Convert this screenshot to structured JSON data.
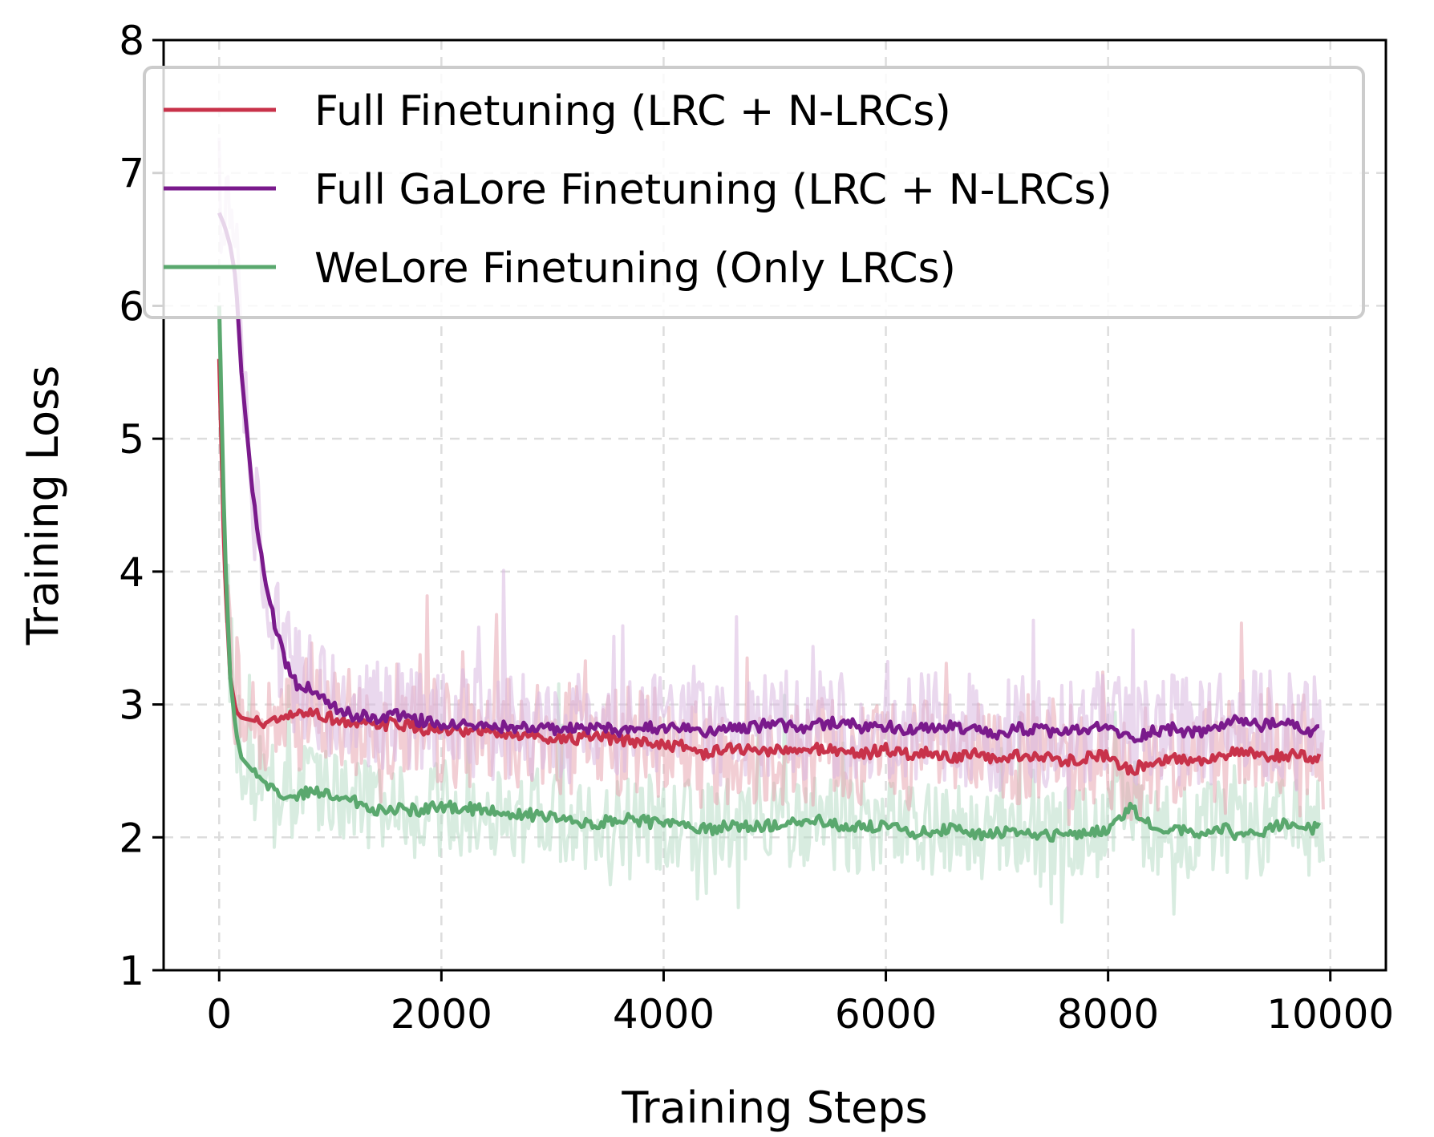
{
  "chart_data": {
    "type": "line",
    "title": "",
    "xlabel": "Training Steps",
    "ylabel": "Training Loss",
    "xlim": [
      -500,
      10500
    ],
    "ylim": [
      1,
      8
    ],
    "xticks": [
      0,
      2000,
      4000,
      6000,
      8000,
      10000
    ],
    "xtick_labels": [
      "0",
      "2000",
      "4000",
      "6000",
      "8000",
      "10000"
    ],
    "yticks": [
      1,
      2,
      3,
      4,
      5,
      6,
      7,
      8
    ],
    "ytick_labels": [
      "1",
      "2",
      "3",
      "4",
      "5",
      "6",
      "7",
      "8"
    ],
    "grid": true,
    "legend_position": "top-left",
    "series": [
      {
        "name": "Full Finetuning (LRC + N-LRCs)",
        "color": "#c8324a",
        "raw_color": "#e8a5b0",
        "x": [
          0,
          50,
          100,
          150,
          200,
          300,
          400,
          500,
          600,
          700,
          800,
          1000,
          1200,
          1400,
          1600,
          1800,
          2000,
          2200,
          2400,
          2600,
          2800,
          3000,
          3200,
          3400,
          3600,
          3800,
          4000,
          4200,
          4400,
          4600,
          4800,
          5000,
          5200,
          5400,
          5600,
          5800,
          6000,
          6200,
          6400,
          6600,
          6800,
          7000,
          7200,
          7400,
          7600,
          7800,
          8000,
          8200,
          8400,
          8600,
          8800,
          9000,
          9200,
          9400,
          9600,
          9800,
          9900
        ],
        "y": [
          5.6,
          4.0,
          3.2,
          2.95,
          2.9,
          2.88,
          2.86,
          2.87,
          2.9,
          2.92,
          2.95,
          2.9,
          2.85,
          2.84,
          2.86,
          2.82,
          2.8,
          2.78,
          2.8,
          2.77,
          2.76,
          2.75,
          2.74,
          2.75,
          2.73,
          2.72,
          2.7,
          2.68,
          2.62,
          2.68,
          2.65,
          2.66,
          2.64,
          2.67,
          2.65,
          2.63,
          2.66,
          2.62,
          2.64,
          2.6,
          2.62,
          2.58,
          2.62,
          2.6,
          2.58,
          2.6,
          2.62,
          2.5,
          2.58,
          2.6,
          2.57,
          2.62,
          2.64,
          2.6,
          2.62,
          2.6,
          2.6
        ]
      },
      {
        "name": "Full GaLore Finetuning (LRC + N-LRCs)",
        "color": "#7a1a8c",
        "raw_color": "#d8b8e0",
        "x": [
          0,
          50,
          100,
          150,
          200,
          300,
          400,
          500,
          600,
          700,
          800,
          1000,
          1200,
          1400,
          1600,
          1800,
          2000,
          2200,
          2400,
          2600,
          2800,
          3000,
          3200,
          3400,
          3600,
          3800,
          4000,
          4200,
          4400,
          4600,
          4800,
          5000,
          5200,
          5400,
          5600,
          5800,
          6000,
          6200,
          6400,
          6600,
          6800,
          7000,
          7200,
          7400,
          7600,
          7800,
          8000,
          8200,
          8400,
          8600,
          8800,
          9000,
          9200,
          9400,
          9600,
          9800,
          9900
        ],
        "y": [
          6.7,
          6.6,
          6.45,
          6.2,
          5.5,
          4.6,
          4.0,
          3.6,
          3.3,
          3.15,
          3.12,
          3.0,
          2.92,
          2.9,
          2.93,
          2.88,
          2.86,
          2.87,
          2.85,
          2.83,
          2.84,
          2.82,
          2.81,
          2.83,
          2.8,
          2.84,
          2.82,
          2.85,
          2.78,
          2.84,
          2.83,
          2.86,
          2.82,
          2.85,
          2.87,
          2.83,
          2.84,
          2.8,
          2.82,
          2.84,
          2.8,
          2.76,
          2.82,
          2.8,
          2.79,
          2.81,
          2.83,
          2.74,
          2.8,
          2.82,
          2.78,
          2.84,
          2.88,
          2.84,
          2.86,
          2.8,
          2.8
        ]
      },
      {
        "name": "WeLore Finetuning (Only LRCs)",
        "color": "#5aa86e",
        "raw_color": "#b8ddc6",
        "x": [
          0,
          50,
          100,
          150,
          200,
          300,
          400,
          500,
          600,
          700,
          800,
          1000,
          1200,
          1400,
          1600,
          1800,
          2000,
          2200,
          2400,
          2600,
          2800,
          3000,
          3200,
          3400,
          3600,
          3800,
          4000,
          4200,
          4400,
          4600,
          4800,
          5000,
          5200,
          5400,
          5600,
          5800,
          6000,
          6200,
          6400,
          6600,
          6800,
          7000,
          7200,
          7400,
          7600,
          7800,
          8000,
          8200,
          8400,
          8600,
          8800,
          9000,
          9200,
          9400,
          9600,
          9800,
          9900
        ],
        "y": [
          6.0,
          4.2,
          3.2,
          2.8,
          2.6,
          2.5,
          2.42,
          2.35,
          2.33,
          2.32,
          2.34,
          2.32,
          2.28,
          2.2,
          2.22,
          2.2,
          2.24,
          2.22,
          2.2,
          2.18,
          2.17,
          2.15,
          2.12,
          2.1,
          2.14,
          2.12,
          2.1,
          2.08,
          2.06,
          2.1,
          2.08,
          2.09,
          2.1,
          2.12,
          2.08,
          2.07,
          2.1,
          2.03,
          2.05,
          2.06,
          2.02,
          2.03,
          2.05,
          2.01,
          2.03,
          2.04,
          2.05,
          2.22,
          2.08,
          2.06,
          2.04,
          2.08,
          2.0,
          2.05,
          2.1,
          2.06,
          2.08
        ]
      }
    ]
  }
}
